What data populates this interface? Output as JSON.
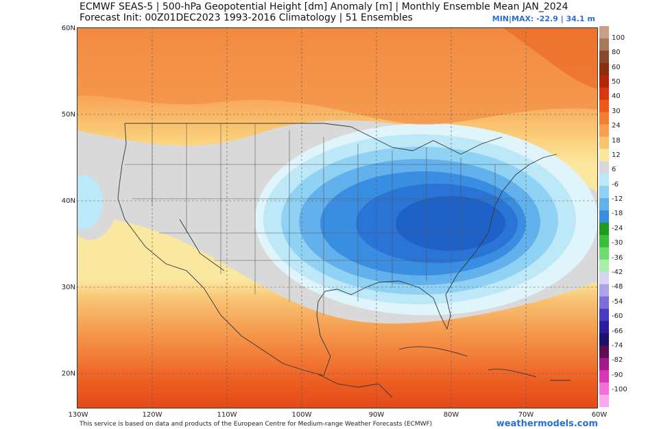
{
  "title": {
    "line1": "ECMWF SEAS-5 | 500-hPa Geopotential Height [dm] Anomaly [m] | Monthly Ensemble Mean JAN_2024",
    "line2": "Forecast Init: 00Z01DEC2023    1993-2016 Climatology | 51 Ensembles",
    "minmax": "MIN|MAX: -22.9 | 34.1 m"
  },
  "axes": {
    "lat_labels": [
      "60N",
      "50N",
      "40N",
      "30N",
      "20N"
    ],
    "lon_labels": [
      "130W",
      "120W",
      "110W",
      "100W",
      "90W",
      "80W",
      "70W",
      "60W"
    ]
  },
  "colorbar": {
    "labels": [
      "100",
      "80",
      "60",
      "50",
      "40",
      "30",
      "24",
      "18",
      "12",
      "6",
      "-6",
      "-12",
      "-18",
      "-24",
      "-30",
      "-36",
      "-42",
      "-48",
      "-54",
      "-60",
      "-66",
      "-74",
      "-82",
      "-90",
      "-100"
    ],
    "colors": [
      "#c8a088",
      "#a87858",
      "#884830",
      "#8a2e10",
      "#b02808",
      "#d83810",
      "#ec5a1c",
      "#f27e32",
      "#f6a050",
      "#f8c470",
      "#fbe89e",
      "#d8d8d8",
      "#bce8f8",
      "#90d2f4",
      "#62b0ec",
      "#3a8ee2",
      "#1e9a1e",
      "#3cbe3c",
      "#6edc6e",
      "#a8f0a8",
      "#d8d4f4",
      "#aca4e6",
      "#7c70d8",
      "#4a3cc0",
      "#2a1e98",
      "#1c1068",
      "#600c50",
      "#a01a88",
      "#d836b8",
      "#f070d8",
      "#f8aaec"
    ]
  },
  "footer": {
    "text": "This service is based on data and products of the European Centre for Medium-range Weather Forecasts (ECMWF)",
    "site": "weathermodels.com"
  }
}
